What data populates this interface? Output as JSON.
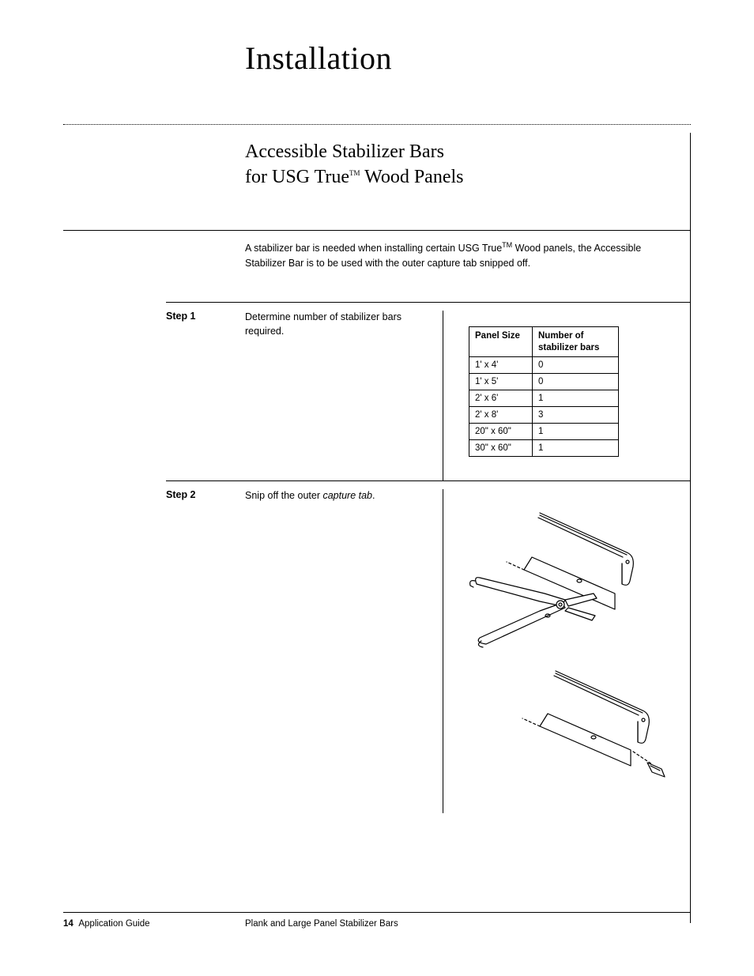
{
  "page": {
    "main_title": "Installation",
    "section_title_line1": "Accessible Stabilizer Bars",
    "section_title_line2_pre": "for USG True",
    "section_title_line2_tm": "TM",
    "section_title_line2_post": " Wood Panels",
    "intro_pre": "A stabilizer bar is needed when installing certain USG True",
    "intro_tm": "TM",
    "intro_post": " Wood panels, the Accessible Stabilizer Bar is to be used with the outer capture tab snipped off.",
    "footer_page_number": "14",
    "footer_guide_label": "Application Guide",
    "footer_doc_title": "Plank and Large Panel Stabilizer Bars"
  },
  "steps": {
    "step1": {
      "label": "Step 1",
      "text": "Determine number of stabilizer bars required."
    },
    "step2": {
      "label": "Step 2",
      "text_pre": "Snip off the outer ",
      "text_italic": "capture tab",
      "text_post": "."
    }
  },
  "table": {
    "header_col1": "Panel Size",
    "header_col2": "Number of stabilizer bars",
    "rows": [
      {
        "size": "1' x 4'",
        "bars": "0"
      },
      {
        "size": "1' x 5'",
        "bars": "0"
      },
      {
        "size": "2' x 6'",
        "bars": "1"
      },
      {
        "size": "2' x 8'",
        "bars": "3"
      },
      {
        "size": "20\" x 60\"",
        "bars": "1"
      },
      {
        "size": "30\" x 60\"",
        "bars": "1"
      }
    ]
  },
  "diagram": {
    "stroke": "#000000",
    "fill": "#ffffff",
    "stroke_width": 1.2
  }
}
